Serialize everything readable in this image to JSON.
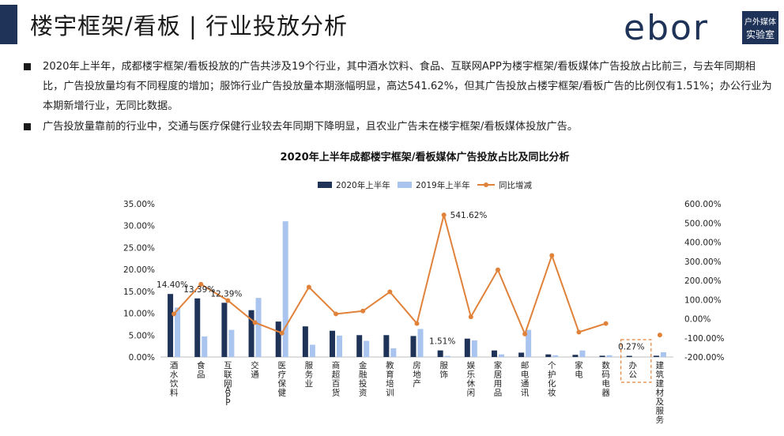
{
  "header": {
    "title": "楼宇框架/看板 | 行业投放分析",
    "logo_text": "ebor",
    "logo_badge_line1": "户外媒体",
    "logo_badge_line2": "实验室",
    "accent_color": "#1f3358"
  },
  "bullets": [
    "2020年上半年，成都楼宇框架/看板投放的广告共涉及19个行业，其中酒水饮料、食品、互联网APP为楼宇框架/看板媒体广告投放占比前三，与去年同期相比，广告投放量均有不同程度的增加；服饰行业广告投放量本期涨幅明显，高达541.62%，但其广告投放占楼宇框架/看板广告的比例仅有1.51%；办公行业为本期新增行业，无同比数据。",
    "广告投放量靠前的行业中，交通与医疗保健行业较去年同期下降明显，且农业广告未在楼宇框架/看板媒体投放广告。"
  ],
  "chart_data": {
    "type": "bar",
    "title": "2020年上半年成都楼宇框架/看板媒体广告投放占比及同比分析",
    "categories": [
      "酒水饮料",
      "食品",
      "互联网APP",
      "交通",
      "医疗保健",
      "服务业",
      "商超百货",
      "金融投资",
      "教育培训",
      "房地产",
      "服饰",
      "娱乐休闲",
      "家居用品",
      "邮电通讯",
      "个护化妆",
      "家电",
      "数码电器",
      "办公",
      "建筑建材及服务"
    ],
    "series": [
      {
        "name": "2020年上半年",
        "type": "bar",
        "axis": "left",
        "color": "#1f3358",
        "values": [
          14.4,
          13.39,
          12.39,
          10.7,
          8.1,
          7.0,
          6.0,
          5.0,
          5.0,
          4.8,
          1.51,
          4.2,
          1.5,
          1.0,
          0.6,
          0.5,
          0.3,
          0.27,
          0.3
        ]
      },
      {
        "name": "2019年上半年",
        "type": "bar",
        "axis": "left",
        "color": "#a9c4ee",
        "values": [
          11.3,
          4.7,
          6.2,
          13.5,
          31.0,
          2.8,
          4.9,
          3.7,
          2.0,
          6.4,
          0.24,
          3.8,
          0.6,
          6.2,
          0.4,
          1.5,
          0.4,
          null,
          1.1
        ]
      },
      {
        "name": "同比增减",
        "type": "line",
        "axis": "right",
        "color": "#e0823a",
        "values": [
          25,
          180,
          95,
          -20,
          -75,
          165,
          25,
          40,
          140,
          -25,
          541.62,
          10,
          255,
          -80,
          330,
          -70,
          -25,
          null,
          -85
        ]
      }
    ],
    "data_labels": [
      {
        "series": "2020年上半年",
        "category": "酒水饮料",
        "text": "14.40%"
      },
      {
        "series": "2020年上半年",
        "category": "食品",
        "text": "13.39%"
      },
      {
        "series": "2020年上半年",
        "category": "互联网APP",
        "text": "12.39%"
      },
      {
        "series": "同比增减",
        "category": "服饰",
        "text": "541.62%"
      },
      {
        "series": "2020年上半年",
        "category": "服饰",
        "text": "1.51%"
      },
      {
        "series": "2020年上半年",
        "category": "办公",
        "text": "0.27%"
      }
    ],
    "y_left": {
      "min": 0,
      "max": 35,
      "step": 5,
      "ticks": [
        "0.00%",
        "5.00%",
        "10.00%",
        "15.00%",
        "20.00%",
        "25.00%",
        "30.00%",
        "35.00%"
      ]
    },
    "y_right": {
      "min": -200,
      "max": 600,
      "step": 100,
      "ticks": [
        "-200.00%",
        "-100.00%",
        "0.00%",
        "100.00%",
        "200.00%",
        "300.00%",
        "400.00%",
        "500.00%",
        "600.00%"
      ]
    },
    "legend_position": "top",
    "grid": false,
    "highlight_category": "办公"
  }
}
